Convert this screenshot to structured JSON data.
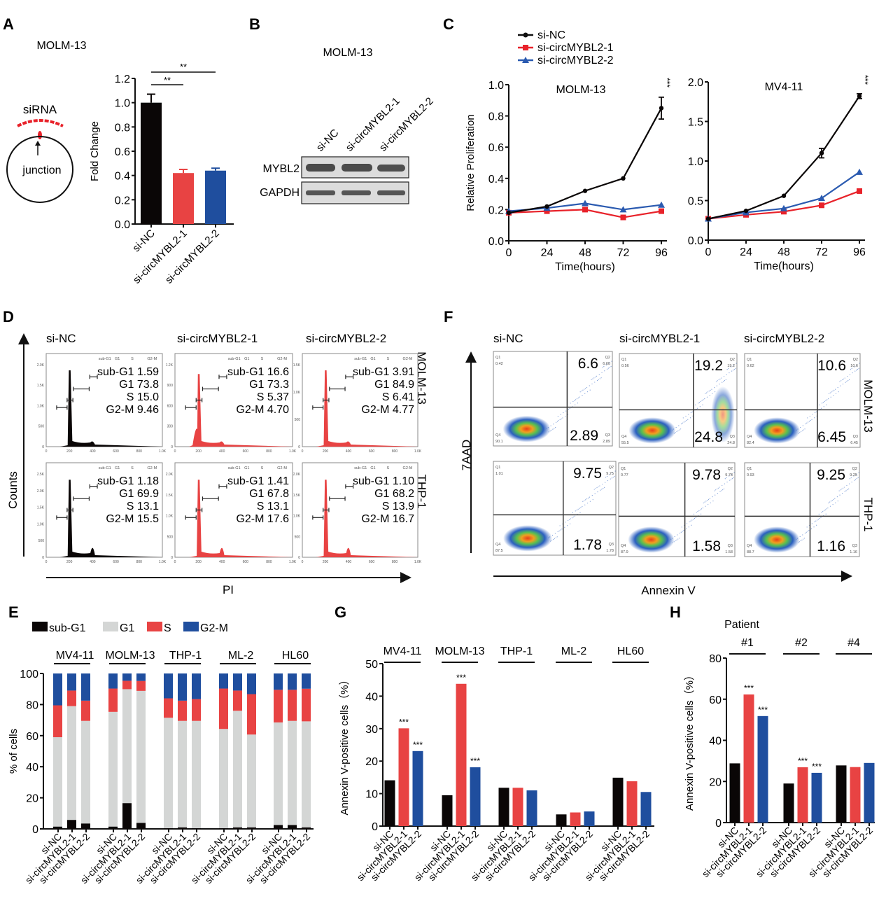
{
  "colors": {
    "black": "#0a0606",
    "red": "#e84343",
    "blue": "#1f4e9e",
    "grey": "#d4d6d5",
    "red_line": "#e8222a",
    "blue_line": "#2a5ab0"
  },
  "panels": {
    "A": "A",
    "B": "B",
    "C": "C",
    "D": "D",
    "E": "E",
    "F": "F",
    "G": "G",
    "H": "H"
  },
  "groups": [
    "si-NC",
    "si-circMYBL2-1",
    "si-circMYBL2-2"
  ],
  "panelA": {
    "title": "MOLM-13",
    "diagram": {
      "siRNA_label": "siRNA",
      "junction_label": "junction"
    }
  },
  "panelB": {
    "title": "MOLM-13",
    "lanes": [
      "si-NC",
      "si-circMYBL2-1",
      "si-circMYBL2-2"
    ],
    "rows": [
      "MYBL2",
      "GAPDH"
    ]
  },
  "panelD": {
    "y_label": "Counts",
    "x_label": "PI",
    "columns": [
      "si-NC",
      "si-circMYBL2-1",
      "si-circMYBL2-2"
    ],
    "rows": [
      "MOLM-13",
      "THP-1"
    ],
    "gate_header": [
      "sub-G1",
      "G1",
      "S",
      "G2-M"
    ],
    "x_ticks": [
      "0",
      "200",
      "400",
      "600",
      "800",
      "1.0K"
    ],
    "plots": [
      {
        "row": "MOLM-13",
        "col": "si-NC",
        "subG1": "1.59",
        "G1": "73.8",
        "S": "15.0",
        "G2M": "9.46",
        "y_ticks": [
          "0",
          "500",
          "1.0K",
          "1.5K",
          "2.0K"
        ]
      },
      {
        "row": "MOLM-13",
        "col": "si-circMYBL2-1",
        "subG1": "16.6",
        "G1": "73.3",
        "S": "5.37",
        "G2M": "4.70",
        "y_ticks": [
          "0",
          "300",
          "600",
          "900",
          "1.2K"
        ]
      },
      {
        "row": "MOLM-13",
        "col": "si-circMYBL2-2",
        "subG1": "3.91",
        "G1": "84.9",
        "S": "6.41",
        "G2M": "4.77",
        "y_ticks": [
          "0",
          "500",
          "1.0K",
          "1.5K"
        ]
      },
      {
        "row": "THP-1",
        "col": "si-NC",
        "subG1": "1.18",
        "G1": "69.9",
        "S": "13.1",
        "G2M": "15.5",
        "y_ticks": [
          "0",
          "500",
          "1.0K",
          "1.5K",
          "2.0K",
          "2.5K"
        ]
      },
      {
        "row": "THP-1",
        "col": "si-circMYBL2-1",
        "subG1": "1.41",
        "G1": "67.8",
        "S": "13.1",
        "G2M": "17.6",
        "y_ticks": [
          "0",
          "500",
          "1.0K",
          "1.5K",
          "2.0K"
        ]
      },
      {
        "row": "THP-1",
        "col": "si-circMYBL2-2",
        "subG1": "1.10",
        "G1": "68.2",
        "S": "13.9",
        "G2M": "16.7",
        "y_ticks": [
          "0",
          "500",
          "1.0K",
          "1.5K",
          "2.0K"
        ]
      }
    ]
  },
  "panelF": {
    "y_label": "7AAD",
    "x_label": "Annexin V",
    "columns": [
      "si-NC",
      "si-circMYBL2-1",
      "si-circMYBL2-2"
    ],
    "rows": [
      "MOLM-13",
      "THP-1"
    ],
    "plots": [
      {
        "row": "MOLM-13",
        "col": "si-NC",
        "Q1": "0.42",
        "Q2": "6.60",
        "Q3": "2.89",
        "Q4": "90.1",
        "big_upper": "6.6",
        "big_lower": "2.89"
      },
      {
        "row": "MOLM-13",
        "col": "si-circMYBL2-1",
        "Q1": "0.56",
        "Q2": "19.2",
        "Q3": "24.8",
        "Q4": "55.5",
        "big_upper": "19.2",
        "big_lower": "24.8"
      },
      {
        "row": "MOLM-13",
        "col": "si-circMYBL2-2",
        "Q1": "0.62",
        "Q2": "10.6",
        "Q3": "6.45",
        "Q4": "82.4",
        "big_upper": "10.6",
        "big_lower": "6.45"
      },
      {
        "row": "THP-1",
        "col": "si-NC",
        "Q1": "1.01",
        "Q2": "9.75",
        "Q3": "1.78",
        "Q4": "87.5",
        "big_upper": "9.75",
        "big_lower": "1.78"
      },
      {
        "row": "THP-1",
        "col": "si-circMYBL2-1",
        "Q1": "0.77",
        "Q2": "9.78",
        "Q3": "1.58",
        "Q4": "87.9",
        "big_upper": "9.78",
        "big_lower": "1.58"
      },
      {
        "row": "THP-1",
        "col": "si-circMYBL2-2",
        "Q1": "0.93",
        "Q2": "9.25",
        "Q3": "1.16",
        "Q4": "88.7",
        "big_upper": "9.25",
        "big_lower": "1.16"
      }
    ]
  },
  "chart_data": [
    {
      "id": "A",
      "type": "bar",
      "title": "MOLM-13",
      "categories": [
        "si-NC",
        "si-circMYBL2-1",
        "si-circMYBL2-2"
      ],
      "values": [
        1.0,
        0.42,
        0.44
      ],
      "errors": [
        0.07,
        0.03,
        0.02
      ],
      "ylabel": "Fold Change",
      "ylim": [
        0,
        1.2
      ],
      "yticks": [
        "0.0",
        "0.2",
        "0.4",
        "0.6",
        "0.8",
        "1.0",
        "1.2"
      ],
      "significance": [
        {
          "between": [
            "si-NC",
            "si-circMYBL2-1"
          ],
          "label": "**"
        },
        {
          "between": [
            "si-NC",
            "si-circMYBL2-2"
          ],
          "label": "**"
        }
      ]
    },
    {
      "id": "C1",
      "type": "line",
      "title": "MOLM-13",
      "x": [
        0,
        24,
        48,
        72,
        96
      ],
      "series": [
        {
          "name": "si-NC",
          "values": [
            0.18,
            0.22,
            0.32,
            0.4,
            0.85
          ],
          "errors": [
            0,
            0,
            0,
            0,
            0.07
          ]
        },
        {
          "name": "si-circMYBL2-1",
          "values": [
            0.18,
            0.19,
            0.2,
            0.15,
            0.19
          ]
        },
        {
          "name": "si-circMYBL2-2",
          "values": [
            0.19,
            0.21,
            0.24,
            0.2,
            0.23
          ]
        }
      ],
      "xlabel": "Time(hours)",
      "ylabel": "Relative Proliferation",
      "ylim": [
        0,
        1.0
      ],
      "yticks": [
        "0.0",
        "0.2",
        "0.4",
        "0.6",
        "0.8",
        "1.0"
      ],
      "xticks": [
        "0",
        "24",
        "48",
        "72",
        "96"
      ],
      "annotation": "***",
      "legend": [
        "si-NC",
        "si-circMYBL2-1",
        "si-circMYBL2-2"
      ]
    },
    {
      "id": "C2",
      "type": "line",
      "title": "MV4-11",
      "x": [
        0,
        24,
        48,
        72,
        96
      ],
      "series": [
        {
          "name": "si-NC",
          "values": [
            0.27,
            0.37,
            0.56,
            1.1,
            1.82
          ],
          "errors": [
            0,
            0,
            0,
            0.06,
            0.03
          ]
        },
        {
          "name": "si-circMYBL2-1",
          "values": [
            0.27,
            0.32,
            0.36,
            0.44,
            0.62
          ]
        },
        {
          "name": "si-circMYBL2-2",
          "values": [
            0.27,
            0.35,
            0.4,
            0.53,
            0.86
          ]
        }
      ],
      "xlabel": "Time(hours)",
      "ylabel": "",
      "ylim": [
        0,
        2.0
      ],
      "yticks": [
        "0.0",
        "0.5",
        "1.0",
        "1.5",
        "2.0"
      ],
      "xticks": [
        "0",
        "24",
        "48",
        "72",
        "96"
      ],
      "annotation": "***"
    },
    {
      "id": "E",
      "type": "bar",
      "stacked": true,
      "ylabel": "% of cells",
      "ylim": [
        0,
        100
      ],
      "yticks": [
        "0",
        "20",
        "40",
        "60",
        "80",
        "100"
      ],
      "legend": [
        "sub-G1",
        "G1",
        "S",
        "G2-M"
      ],
      "groups": [
        "MV4-11",
        "MOLM-13",
        "THP-1",
        "ML-2",
        "HL60"
      ],
      "categories": [
        "si-NC",
        "si-circMYBL2-1",
        "si-circMYBL2-2"
      ],
      "series": [
        {
          "name": "sub-G1",
          "values": [
            [
              1.5,
              5.8,
              3.5
            ],
            [
              1.5,
              16.6,
              3.9
            ],
            [
              0.5,
              1.0,
              0.5
            ],
            [
              0.5,
              1.0,
              1.0
            ],
            [
              2.5,
              2.5,
              1.0
            ]
          ]
        },
        {
          "name": "G1",
          "values": [
            [
              57.5,
              73.2,
              66.0
            ],
            [
              73.8,
              73.3,
              84.9
            ],
            [
              71.0,
              68.5,
              69.0
            ],
            [
              63.8,
              75.0,
              59.7
            ],
            [
              66.0,
              67.0,
              68.2
            ]
          ]
        },
        {
          "name": "S",
          "values": [
            [
              20.5,
              10.0,
              13.0
            ],
            [
              15.0,
              5.4,
              6.4
            ],
            [
              12.5,
              13.0,
              14.0
            ],
            [
              26.0,
              13.0,
              26.0
            ],
            [
              21.0,
              20.0,
              21.0
            ]
          ]
        },
        {
          "name": "G2-M",
          "values": [
            [
              20.5,
              11.0,
              17.5
            ],
            [
              9.7,
              4.7,
              4.8
            ],
            [
              16.0,
              17.5,
              16.5
            ],
            [
              9.7,
              11.0,
              13.3
            ],
            [
              10.5,
              10.5,
              9.8
            ]
          ]
        }
      ]
    },
    {
      "id": "G",
      "type": "bar",
      "ylabel": "Annexin V-positive cells（%）",
      "ylim": [
        0,
        50
      ],
      "yticks": [
        "0",
        "10",
        "20",
        "30",
        "40",
        "50"
      ],
      "groups": [
        "MV4-11",
        "MOLM-13",
        "THP-1",
        "ML-2",
        "HL60"
      ],
      "categories": [
        "si-NC",
        "si-circMYBL2-1",
        "si-circMYBL2-2"
      ],
      "series": [
        {
          "name": "si-NC",
          "values": [
            14.1,
            9.5,
            11.8,
            3.6,
            14.9
          ]
        },
        {
          "name": "si-circMYBL2-1",
          "values": [
            30.1,
            43.8,
            11.8,
            4.2,
            13.8
          ]
        },
        {
          "name": "si-circMYBL2-2",
          "values": [
            23.1,
            18.1,
            11.0,
            4.5,
            10.5
          ]
        }
      ],
      "annotations": [
        {
          "group": "MV4-11",
          "series": "si-circMYBL2-1",
          "label": "***"
        },
        {
          "group": "MV4-11",
          "series": "si-circMYBL2-2",
          "label": "***"
        },
        {
          "group": "MOLM-13",
          "series": "si-circMYBL2-1",
          "label": "***"
        },
        {
          "group": "MOLM-13",
          "series": "si-circMYBL2-2",
          "label": "***"
        }
      ]
    },
    {
      "id": "H",
      "type": "bar",
      "title": "Patient",
      "ylabel": "Annexin V-positive cells（%）",
      "ylim": [
        0,
        80
      ],
      "yticks": [
        "0",
        "20",
        "40",
        "60",
        "80"
      ],
      "groups": [
        "#1",
        "#2",
        "#4"
      ],
      "categories": [
        "si-NC",
        "si-circMYBL2-1",
        "si-circMYBL2-2"
      ],
      "series": [
        {
          "name": "si-NC",
          "values": [
            28.8,
            19.0,
            27.8
          ]
        },
        {
          "name": "si-circMYBL2-1",
          "values": [
            62.3,
            26.9,
            27.0
          ]
        },
        {
          "name": "si-circMYBL2-2",
          "values": [
            51.8,
            24.2,
            29.0
          ]
        }
      ],
      "annotations": [
        {
          "group": "#1",
          "series": "si-circMYBL2-1",
          "label": "***"
        },
        {
          "group": "#1",
          "series": "si-circMYBL2-2",
          "label": "***"
        },
        {
          "group": "#2",
          "series": "si-circMYBL2-1",
          "label": "***"
        },
        {
          "group": "#2",
          "series": "si-circMYBL2-2",
          "label": "***"
        }
      ]
    }
  ]
}
